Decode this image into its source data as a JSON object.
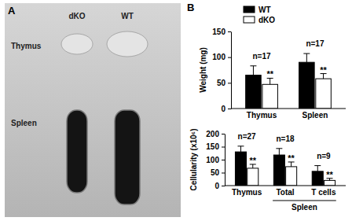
{
  "panel_labels": [
    "A",
    "B"
  ],
  "photo": {
    "columns": [
      "dKO",
      "WT"
    ],
    "rows": [
      "Thymus",
      "Spleen"
    ]
  },
  "chart_data": [
    {
      "type": "bar",
      "y_label": "Weight (mg)",
      "categories": [
        "Thymus",
        "Spleen"
      ],
      "series": [
        {
          "name": "WT",
          "color": "#000000",
          "values": [
            65,
            90
          ],
          "errors": [
            18,
            17
          ]
        },
        {
          "name": "dKO",
          "color": "#ffffff",
          "values": [
            47,
            58
          ],
          "errors": [
            12,
            10
          ],
          "significance": [
            "**",
            "**"
          ]
        }
      ],
      "group_labels": [
        "n=17",
        "n=17"
      ],
      "ylim": [
        0,
        150
      ],
      "yticks": [
        0,
        50,
        100,
        150
      ],
      "legend": "top"
    },
    {
      "type": "bar",
      "y_label": "Cellularity (x10⁶)",
      "categories": [
        "Thymus",
        "Total",
        "T cells"
      ],
      "category_groups": [
        {
          "label": "Spleen",
          "categories": [
            "Total",
            "T cells"
          ]
        }
      ],
      "series": [
        {
          "name": "WT",
          "color": "#000000",
          "values": [
            130,
            118,
            55
          ],
          "errors": [
            22,
            25,
            22
          ]
        },
        {
          "name": "dKO",
          "color": "#ffffff",
          "values": [
            67,
            73,
            20
          ],
          "errors": [
            15,
            18,
            8
          ],
          "significance": [
            "**",
            "**",
            "**"
          ]
        }
      ],
      "group_labels": [
        "n=27",
        "n=18",
        "n=9"
      ],
      "ylim": [
        0,
        200
      ],
      "yticks": [
        0,
        50,
        100,
        150,
        200
      ],
      "legend": "none"
    }
  ]
}
